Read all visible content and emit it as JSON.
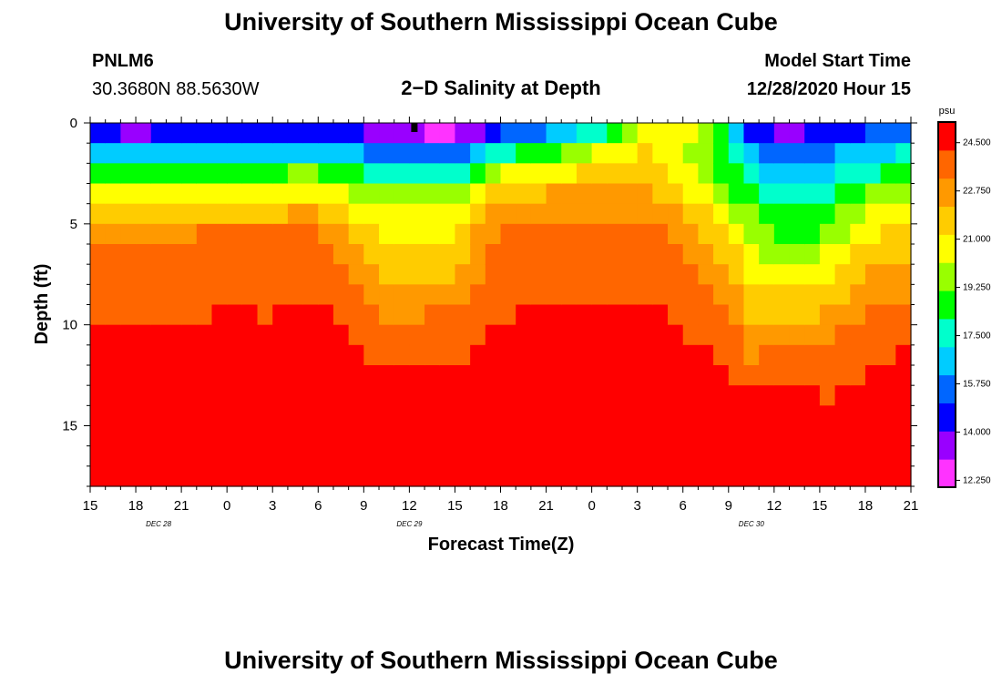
{
  "header": {
    "title": "University of Southern Mississippi Ocean Cube",
    "station_id": "PNLM6",
    "station_coords": "30.3680N 88.5630W",
    "model_start_label": "Model Start Time",
    "model_start_value": "12/28/2020 Hour 15"
  },
  "footer": {
    "title": "University of Southern Mississippi Ocean Cube"
  },
  "chart_data": {
    "type": "heatmap",
    "title": "2−D Salinity at Depth",
    "xlabel": "Forecast Time(Z)",
    "ylabel": "Depth (ft)",
    "x_tick_labels": [
      "15",
      "18",
      "21",
      "0",
      "3",
      "6",
      "9",
      "12",
      "15",
      "18",
      "21",
      "0",
      "3",
      "6",
      "9",
      "12",
      "15",
      "18",
      "21"
    ],
    "x_hours": [
      0,
      3,
      6,
      9,
      12,
      15,
      18,
      21,
      24,
      27,
      30,
      33,
      36,
      39,
      42,
      45,
      48,
      51,
      54
    ],
    "date_labels": [
      {
        "text": "DEC 28",
        "hour": 4.5
      },
      {
        "text": "DEC 29",
        "hour": 21
      },
      {
        "text": "DEC 30",
        "hour": 43.5
      }
    ],
    "y_tick_labels": [
      "0",
      "5",
      "10",
      "15"
    ],
    "y_ticks": [
      0,
      5,
      10,
      15
    ],
    "ylim": [
      0,
      18
    ],
    "xlim": [
      0,
      54
    ],
    "colorbar": {
      "unit": "psu",
      "min": 12.0,
      "max": 25.25,
      "tick_labels": [
        "24.500",
        "22.750",
        "21.000",
        "19.250",
        "17.500",
        "15.750",
        "14.000",
        "12.250"
      ],
      "tick_values": [
        24.5,
        22.75,
        21.0,
        19.25,
        17.5,
        15.75,
        14.0,
        12.25
      ],
      "colors": [
        "#ff33ff",
        "#9900ff",
        "#0000ff",
        "#0066ff",
        "#00ccff",
        "#00ffcc",
        "#00ff00",
        "#99ff00",
        "#ffff00",
        "#ffcc00",
        "#ff9900",
        "#ff6600",
        "#ff0000"
      ]
    },
    "salinity_profiles": {
      "depth_nodes_ft": [
        0.25,
        1,
        2,
        3,
        4,
        5,
        6,
        8,
        10,
        12,
        14,
        16,
        18
      ],
      "time_hours": [
        0,
        3,
        6,
        9,
        12,
        15,
        17,
        19,
        21,
        24,
        27,
        30,
        33,
        36,
        38,
        39,
        40,
        42,
        43.5,
        45,
        46.5,
        48,
        51,
        54
      ],
      "salinity_psu": [
        [
          13.5,
          15.5,
          17.5,
          19.5,
          21.0,
          22.5,
          23.8,
          24.0,
          24.2,
          24.5,
          24.7,
          24.8,
          25.0
        ],
        [
          13.3,
          15.3,
          17.3,
          19.5,
          21.0,
          22.5,
          23.8,
          24.0,
          24.2,
          24.5,
          24.7,
          24.8,
          25.0
        ],
        [
          13.5,
          15.5,
          17.5,
          19.5,
          21.0,
          22.5,
          23.8,
          24.0,
          24.2,
          24.5,
          24.7,
          24.8,
          25.0
        ],
        [
          13.5,
          15.5,
          17.8,
          19.8,
          21.3,
          22.8,
          23.9,
          24.1,
          24.3,
          24.6,
          24.8,
          24.9,
          25.0
        ],
        [
          13.5,
          15.7,
          18.0,
          20.0,
          21.5,
          22.8,
          23.7,
          24.0,
          24.3,
          24.6,
          24.8,
          24.9,
          25.0
        ],
        [
          13.5,
          15.8,
          18.3,
          20.3,
          21.8,
          23.0,
          23.5,
          24.0,
          24.4,
          24.6,
          24.8,
          25.0,
          25.1
        ],
        [
          13.6,
          15.5,
          17.5,
          19.5,
          20.8,
          21.8,
          22.5,
          23.5,
          24.3,
          24.6,
          24.9,
          25.1,
          25.2
        ],
        [
          13.4,
          14.5,
          16.5,
          18.8,
          20.0,
          20.8,
          21.3,
          22.3,
          23.5,
          24.3,
          24.8,
          25.1,
          25.2
        ],
        [
          12.5,
          14.3,
          16.0,
          18.5,
          19.8,
          20.5,
          21.0,
          22.0,
          23.3,
          24.2,
          24.8,
          25.2,
          25.25
        ],
        [
          12.0,
          14.5,
          16.5,
          18.8,
          20.0,
          20.7,
          21.3,
          22.5,
          23.8,
          24.3,
          24.8,
          25.1,
          25.2
        ],
        [
          14.5,
          16.5,
          19.3,
          21.0,
          22.5,
          23.2,
          23.8,
          24.0,
          24.3,
          24.5,
          24.7,
          24.9,
          25.0
        ],
        [
          15.5,
          17.5,
          19.8,
          21.5,
          22.8,
          23.3,
          23.9,
          24.1,
          24.3,
          24.5,
          24.7,
          24.9,
          25.0
        ],
        [
          16.5,
          19.0,
          21.0,
          22.0,
          23.0,
          23.3,
          23.9,
          24.1,
          24.3,
          24.6,
          24.8,
          24.9,
          25.0
        ],
        [
          19.5,
          21.0,
          21.5,
          22.3,
          23.0,
          23.3,
          23.9,
          24.1,
          24.3,
          24.6,
          24.8,
          24.9,
          25.0
        ],
        [
          20.5,
          21.0,
          21.0,
          21.5,
          22.5,
          23.0,
          23.7,
          24.0,
          24.3,
          24.6,
          24.8,
          24.9,
          25.0
        ],
        [
          20.8,
          20.5,
          20.5,
          21.0,
          21.8,
          22.5,
          23.3,
          23.8,
          24.2,
          24.6,
          24.8,
          25.0,
          25.0
        ],
        [
          20.0,
          19.5,
          20.0,
          20.5,
          21.3,
          22.0,
          22.8,
          23.5,
          24.0,
          24.5,
          24.8,
          25.0,
          25.0
        ],
        [
          18.0,
          18.0,
          18.5,
          19.0,
          19.8,
          20.5,
          21.3,
          22.3,
          23.3,
          24.2,
          24.6,
          24.8,
          24.9
        ],
        [
          14.5,
          15.5,
          17.0,
          18.0,
          18.8,
          19.5,
          20.3,
          21.3,
          22.3,
          23.5,
          24.5,
          24.9,
          25.0
        ],
        [
          13.5,
          14.5,
          16.0,
          17.0,
          17.8,
          18.5,
          19.5,
          20.8,
          22.5,
          24.0,
          24.8,
          25.2,
          25.25
        ],
        [
          13.5,
          14.8,
          16.3,
          17.2,
          17.8,
          18.5,
          19.5,
          21.0,
          22.5,
          24.0,
          24.6,
          24.9,
          25.0
        ],
        [
          13.7,
          15.0,
          16.5,
          17.3,
          17.8,
          18.6,
          19.6,
          21.0,
          22.5,
          23.8,
          24.3,
          24.6,
          24.8
        ],
        [
          14.5,
          15.8,
          17.3,
          18.5,
          19.8,
          20.5,
          21.3,
          22.5,
          23.5,
          24.2,
          24.5,
          24.7,
          24.9
        ],
        [
          15.5,
          16.5,
          18.0,
          19.3,
          20.5,
          21.3,
          22.0,
          23.0,
          24.0,
          24.4,
          24.6,
          24.8,
          24.9
        ]
      ]
    },
    "marker": {
      "hour": 21.3,
      "depth": 0.25
    }
  }
}
